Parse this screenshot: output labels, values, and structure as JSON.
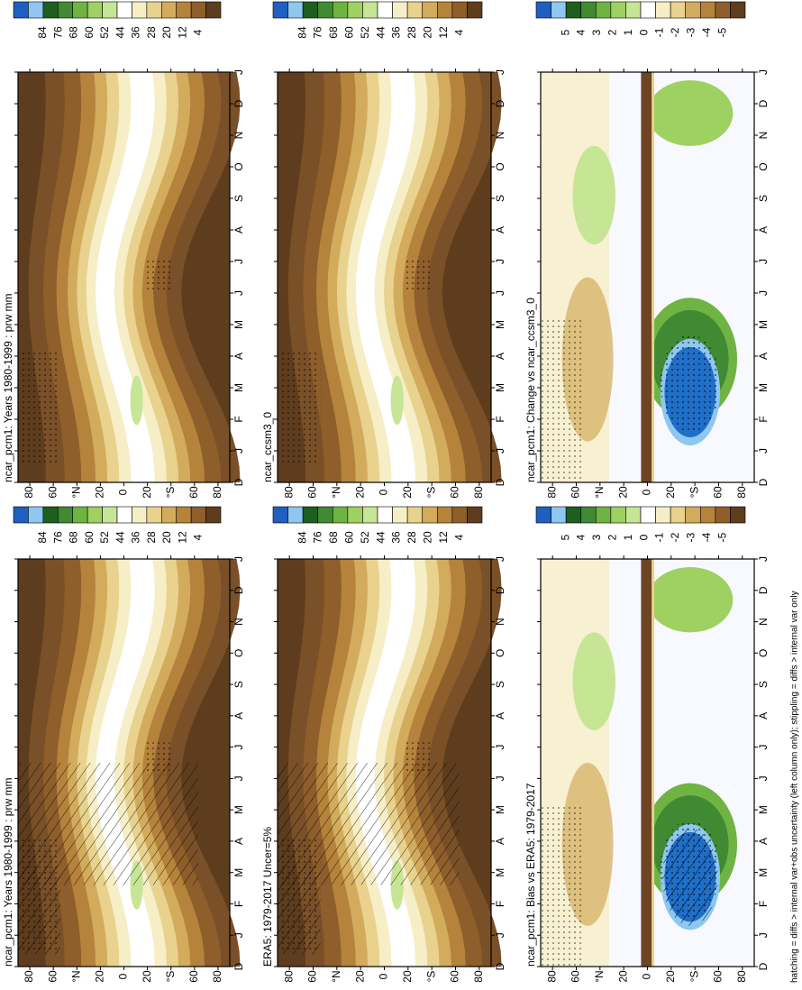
{
  "panels": [
    {
      "title": "ncar_pcm1: Years 1980-1999 : prw mm",
      "colorbar": [
        84,
        76,
        68,
        60,
        52,
        44,
        36,
        28,
        20,
        12,
        4
      ]
    },
    {
      "title": "ncar_ccsm3_0",
      "colorbar": [
        84,
        76,
        68,
        60,
        52,
        44,
        36,
        28,
        20,
        12,
        4
      ]
    },
    {
      "title": "ncar_pcm1: Change vs ncar_ccsm3_0",
      "colorbar": [
        5,
        4,
        3,
        2,
        1,
        0,
        -1,
        -2,
        -3,
        -4,
        -5
      ]
    },
    {
      "title": "ncar_pcm1: Years 1980-1999 : prw mm",
      "colorbar": [
        84,
        76,
        68,
        60,
        52,
        44,
        36,
        28,
        20,
        12,
        4
      ]
    },
    {
      "title": "ERA5: 1979-2017 Uncer=5%",
      "colorbar": [
        84,
        76,
        68,
        60,
        52,
        44,
        36,
        28,
        20,
        12,
        4
      ]
    },
    {
      "title": "ncar_pcm1: Bias vs ERA5: 1979-2017",
      "colorbar": [
        5,
        4,
        3,
        2,
        1,
        0,
        -1,
        -2,
        -3,
        -4,
        -5
      ]
    }
  ],
  "latitude_labels": [
    "80",
    "60",
    "°N",
    "20",
    "0",
    "20",
    "°S",
    "60",
    "80"
  ],
  "month_labels": [
    "D",
    "J",
    "F",
    "M",
    "A",
    "M",
    "J",
    "J",
    "A",
    "S",
    "O",
    "N",
    "D",
    "J"
  ],
  "footnote": "hatching = diffs > internal var+obs uncertainty (left column only); stippling = diffs > internal var only"
}
